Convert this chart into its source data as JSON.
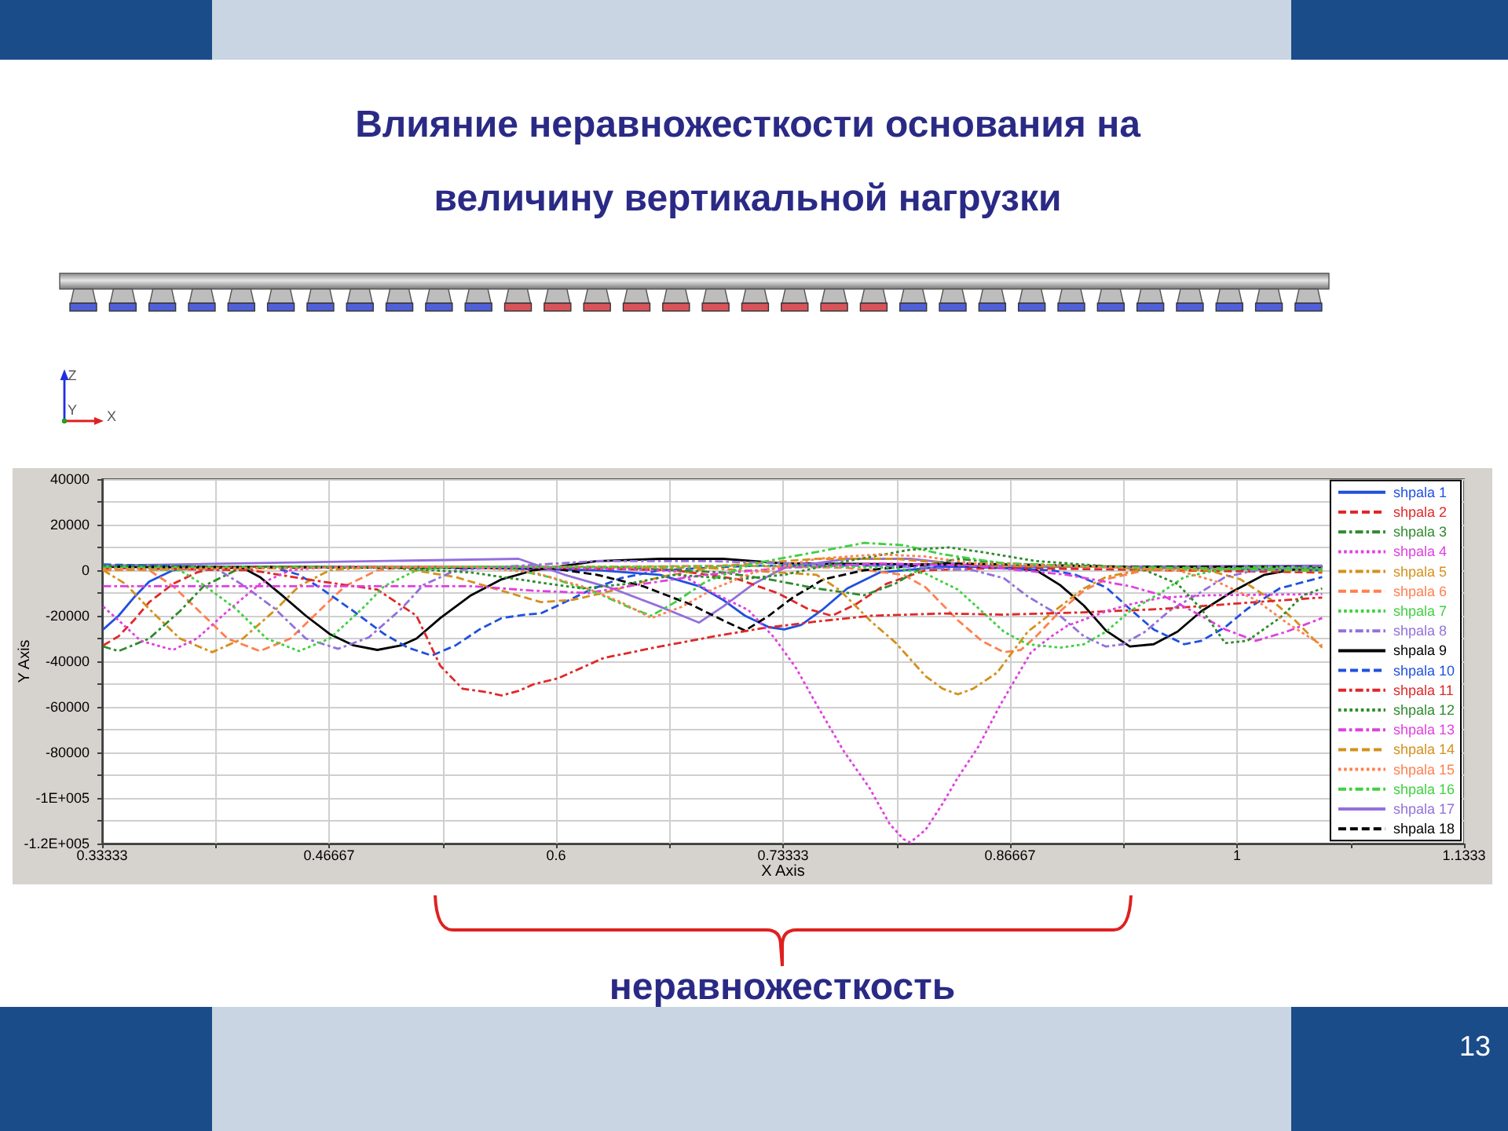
{
  "chart_data": {
    "type": "line",
    "title": "Влияние неравножесткости основания на величину вертикальной нагрузки",
    "xlabel": "X Axis",
    "ylabel": "Y Axis",
    "annotations": [
      "неравножесткость",
      "Z",
      "Y",
      "X",
      "13"
    ],
    "xlim": [
      0.33333,
      1.1333
    ],
    "xticks": [
      0.33333,
      {
        "value": 0.4,
        "label": null
      },
      0.46667,
      {
        "value": 0.53333,
        "label": null
      },
      0.6,
      {
        "value": 0.66667,
        "label": null
      },
      0.73333,
      {
        "value": 0.8,
        "label": null
      },
      0.86667,
      {
        "value": 0.93333,
        "label": null
      },
      1,
      {
        "value": 1.0667,
        "label": null
      },
      1.1333
    ],
    "ylim": [
      -120000,
      40000
    ],
    "yticks": [
      {
        "value": -120000,
        "label": "-1.2E+005"
      },
      {
        "value": -110000,
        "label": null
      },
      {
        "value": -100000,
        "label": "-1E+005"
      },
      {
        "value": -90000,
        "label": null
      },
      -80000,
      {
        "value": -70000,
        "label": null
      },
      -60000,
      {
        "value": -50000,
        "label": null
      },
      -40000,
      {
        "value": -30000,
        "label": null
      },
      -20000,
      {
        "value": -10000,
        "label": null
      },
      0,
      {
        "value": 10000,
        "label": null
      },
      20000,
      {
        "value": 30000,
        "label": null
      },
      40000
    ],
    "grid": true,
    "legend": "right",
    "series": [
      {
        "name": "shpala 1",
        "color": "#2050e0",
        "line_style": "solid",
        "x": [
          0.334,
          0.343,
          0.352,
          0.361,
          0.375,
          0.393,
          0.458,
          0.55,
          0.624,
          0.661,
          0.684,
          0.698,
          0.711,
          0.725,
          0.734,
          0.744,
          0.757,
          0.771,
          0.79,
          0.827,
          0.919,
          1.05
        ],
        "values": [
          -26000,
          -20000,
          -12000,
          -5000,
          0,
          1500,
          1500,
          1000,
          0,
          -2000,
          -7000,
          -13000,
          -20000,
          -25000,
          -26000,
          -24000,
          -17000,
          -8000,
          -1000,
          1500,
          1500,
          0
        ]
      },
      {
        "name": "shpala 2",
        "color": "#e02828",
        "line_style": "dashed",
        "x": [
          0.334,
          0.343,
          0.352,
          0.361,
          0.375,
          0.389,
          0.402,
          0.504,
          0.596,
          0.67,
          0.707,
          0.73,
          0.748,
          0.762,
          0.776,
          0.794,
          0.817,
          0.863,
          1.05
        ],
        "values": [
          -33000,
          -29000,
          -22000,
          -14000,
          -6000,
          -1000,
          1500,
          1500,
          1000,
          0,
          -4000,
          -10000,
          -17000,
          -20000,
          -15000,
          -6000,
          0,
          1000,
          -1000
        ]
      },
      {
        "name": "shpala 3",
        "color": "#2e8b2e",
        "line_style": "dashdot",
        "x": [
          0.334,
          0.343,
          0.361,
          0.379,
          0.393,
          0.412,
          0.43,
          0.55,
          0.642,
          0.698,
          0.725,
          0.753,
          0.781,
          0.799,
          0.817,
          0.836,
          0.863,
          0.919,
          1.05
        ],
        "values": [
          -33500,
          -35500,
          -30000,
          -18000,
          -7000,
          0,
          1500,
          1500,
          1000,
          -1000,
          -4000,
          -8000,
          -11000,
          -6000,
          2000,
          5000,
          3000,
          1500,
          500
        ]
      },
      {
        "name": "shpala 4",
        "color": "#e040e0",
        "line_style": "dotted",
        "x": [
          0.334,
          0.343,
          0.356,
          0.375,
          0.389,
          0.407,
          0.426,
          0.444,
          0.467,
          0.55,
          0.642,
          0.67,
          0.691,
          0.713,
          0.728,
          0.741,
          0.753,
          0.769,
          0.784,
          0.796,
          0.804,
          0.808,
          0.817,
          0.827,
          0.836,
          0.848,
          0.861,
          0.87,
          0.879,
          0.891,
          0.9,
          0.916,
          0.925,
          0.94,
          0.956,
          0.983,
          1.05
        ],
        "values": [
          -16000,
          -22000,
          -31000,
          -35000,
          -30000,
          -18000,
          -6000,
          0,
          1500,
          1500,
          500,
          -500,
          -9500,
          -17500,
          -29500,
          -43000,
          -59000,
          -79500,
          -95500,
          -111500,
          -118000,
          -119500,
          -114000,
          -102500,
          -91000,
          -77500,
          -59000,
          -47500,
          -36000,
          -29000,
          -24500,
          -20000,
          -17500,
          -14500,
          -12000,
          -11000,
          -10500
        ]
      },
      {
        "name": "shpala 5",
        "color": "#d4901c",
        "line_style": "dashdot",
        "x": [
          0.334,
          0.347,
          0.361,
          0.379,
          0.398,
          0.416,
          0.435,
          0.449,
          0.467,
          0.495,
          0.596,
          0.688,
          0.753,
          0.767,
          0.785,
          0.799,
          0.817,
          0.827,
          0.836,
          0.845,
          0.859,
          0.868,
          0.877,
          0.896,
          0.91,
          0.923,
          0.942,
          0.974,
          1.05
        ],
        "values": [
          0,
          -6000,
          -17000,
          -30000,
          -36000,
          -30000,
          -17500,
          -7000,
          0,
          1500,
          1500,
          1000,
          -2000,
          -9000,
          -22500,
          -31500,
          -46500,
          -52000,
          -54500,
          -52000,
          -45000,
          -36000,
          -27000,
          -16000,
          -8000,
          -3000,
          0,
          1000,
          -500
        ]
      },
      {
        "name": "shpala 6",
        "color": "#ff8050",
        "line_style": "dashed",
        "x": [
          0.334,
          0.361,
          0.375,
          0.389,
          0.407,
          0.426,
          0.444,
          0.462,
          0.476,
          0.495,
          0.513,
          0.624,
          0.707,
          0.771,
          0.804,
          0.817,
          0.836,
          0.85,
          0.863,
          0.873,
          0.882,
          0.896,
          0.91,
          0.923,
          0.946,
          0.974,
          1.05
        ],
        "values": [
          500,
          0,
          -7000,
          -17000,
          -30000,
          -35500,
          -30000,
          -17000,
          -7000,
          0,
          1500,
          1500,
          2000,
          1000,
          -2000,
          -7500,
          -22000,
          -31000,
          -36000,
          -35000,
          -29000,
          -18000,
          -9000,
          -4000,
          0,
          1000,
          1000
        ]
      },
      {
        "name": "shpala 7",
        "color": "#40d040",
        "line_style": "dotted",
        "x": [
          0.334,
          0.379,
          0.393,
          0.412,
          0.43,
          0.449,
          0.467,
          0.486,
          0.499,
          0.518,
          0.541,
          0.642,
          0.734,
          0.799,
          0.817,
          0.836,
          0.85,
          0.863,
          0.877,
          0.896,
          0.91,
          0.923,
          0.937,
          0.956,
          0.969,
          0.988,
          1.011,
          1.05
        ],
        "values": [
          1000,
          0,
          -6500,
          -17000,
          -30000,
          -35500,
          -30000,
          -17000,
          -7000,
          0,
          1500,
          1500,
          2000,
          1000,
          -1500,
          -8500,
          -18000,
          -27000,
          -32500,
          -34000,
          -32500,
          -27000,
          -18000,
          -9500,
          -3000,
          0,
          1500,
          1000
        ]
      },
      {
        "name": "shpala 8",
        "color": "#9370db",
        "line_style": "dashdot",
        "x": [
          0.334,
          0.402,
          0.416,
          0.435,
          0.453,
          0.472,
          0.49,
          0.509,
          0.522,
          0.541,
          0.568,
          0.624,
          0.688,
          0.79,
          0.845,
          0.863,
          0.877,
          0.896,
          0.91,
          0.923,
          0.933,
          0.946,
          0.96,
          0.979,
          0.993,
          1.011,
          1.05
        ],
        "values": [
          2000,
          0,
          -6500,
          -17000,
          -30000,
          -34500,
          -29500,
          -17000,
          -6500,
          0,
          1500,
          4000,
          4000,
          2000,
          0,
          -3500,
          -11500,
          -20000,
          -29000,
          -33500,
          -32500,
          -27000,
          -18000,
          -9500,
          -3000,
          0,
          2000
        ]
      },
      {
        "name": "shpala 9",
        "color": "#000000",
        "line_style": "solid",
        "x": [
          0.334,
          0.416,
          0.426,
          0.439,
          0.453,
          0.467,
          0.481,
          0.495,
          0.509,
          0.518,
          0.532,
          0.55,
          0.568,
          0.587,
          0.624,
          0.661,
          0.698,
          0.734,
          0.827,
          0.863,
          0.882,
          0.896,
          0.91,
          0.923,
          0.937,
          0.951,
          0.965,
          0.979,
          0.997,
          1.016,
          1.034,
          1.05
        ],
        "values": [
          1500,
          1000,
          -3000,
          -11000,
          -20000,
          -28000,
          -33000,
          -35000,
          -33000,
          -30000,
          -21000,
          -11000,
          -4000,
          0,
          4000,
          5000,
          5000,
          3000,
          2500,
          1000,
          0,
          -6500,
          -15500,
          -26500,
          -33500,
          -32500,
          -27000,
          -18000,
          -9500,
          -2000,
          500,
          1500
        ]
      },
      {
        "name": "shpala 10",
        "color": "#2050e0",
        "line_style": "dashed",
        "x": [
          0.334,
          0.435,
          0.449,
          0.462,
          0.481,
          0.499,
          0.513,
          0.527,
          0.541,
          0.555,
          0.568,
          0.582,
          0.591,
          0.601,
          0.619,
          0.638,
          0.661,
          0.716,
          0.827,
          0.891,
          0.905,
          0.923,
          0.937,
          0.951,
          0.969,
          0.979,
          0.993,
          1.006,
          1.025,
          1.05
        ],
        "values": [
          2500,
          1000,
          -2000,
          -8000,
          -18000,
          -28000,
          -34000,
          -37500,
          -33000,
          -26000,
          -21000,
          -19500,
          -19000,
          -15500,
          -9000,
          -3500,
          0,
          2000,
          2000,
          0,
          -2000,
          -7500,
          -17000,
          -26000,
          -32500,
          -31000,
          -25000,
          -17000,
          -8000,
          -3000
        ]
      },
      {
        "name": "shpala 11",
        "color": "#e02828",
        "line_style": "dashdot",
        "x": [
          0.334,
          0.421,
          0.458,
          0.495,
          0.518,
          0.532,
          0.545,
          0.559,
          0.568,
          0.578,
          0.587,
          0.601,
          0.628,
          0.661,
          0.693,
          0.721,
          0.753,
          0.785,
          0.827,
          0.863,
          0.91,
          0.956,
          1.002,
          1.05
        ],
        "values": [
          1000,
          0,
          -4500,
          -8500,
          -20000,
          -42000,
          -52000,
          -53500,
          -55000,
          -53000,
          -50000,
          -47500,
          -38500,
          -33500,
          -29000,
          -25500,
          -22500,
          -20000,
          -19000,
          -19500,
          -18500,
          -17000,
          -14500,
          -12000
        ]
      },
      {
        "name": "shpala 12",
        "color": "#2e8b2e",
        "line_style": "dotted",
        "x": [
          0.334,
          0.504,
          0.55,
          0.587,
          0.615,
          0.642,
          0.67,
          0.707,
          0.734,
          0.771,
          0.808,
          0.831,
          0.85,
          0.882,
          0.919,
          0.946,
          0.965,
          0.979,
          0.993,
          1.006,
          1.025,
          1.039,
          1.05
        ],
        "values": [
          2000,
          1000,
          -1000,
          -5000,
          -8000,
          -6000,
          -2000,
          -4000,
          -2000,
          4000,
          9000,
          10000,
          8000,
          4000,
          2000,
          0,
          -6000,
          -17000,
          -32000,
          -31000,
          -21000,
          -11000,
          -8000
        ]
      },
      {
        "name": "shpala 13",
        "color": "#e040e0",
        "line_style": "dashdot",
        "x": [
          0.334,
          0.412,
          0.504,
          0.55,
          0.587,
          0.619,
          0.651,
          0.688,
          0.734,
          0.79,
          0.845,
          0.9,
          0.937,
          0.956,
          0.974,
          0.993,
          1.011,
          1.029,
          1.05
        ],
        "values": [
          -7000,
          -7000,
          -7000,
          -7000,
          -9000,
          -10000,
          -6000,
          -2000,
          1000,
          3000,
          2000,
          -2000,
          -7000,
          -11000,
          -18000,
          -26000,
          -31000,
          -27000,
          -21000
        ]
      },
      {
        "name": "shpala 14",
        "color": "#d4901c",
        "line_style": "dashed",
        "x": [
          0.334,
          0.504,
          0.541,
          0.568,
          0.591,
          0.61,
          0.633,
          0.661,
          0.698,
          0.753,
          0.799,
          0.845,
          0.919,
          0.983,
          1.002,
          1.02,
          1.034,
          1.05
        ],
        "values": [
          0,
          1500,
          -3000,
          -9000,
          -14000,
          -13000,
          -9000,
          -3000,
          2000,
          5000,
          5000,
          2000,
          1500,
          0,
          -4000,
          -13000,
          -22000,
          -34000
        ]
      },
      {
        "name": "shpala 15",
        "color": "#ff8050",
        "line_style": "dotted",
        "x": [
          0.334,
          0.55,
          0.587,
          0.615,
          0.638,
          0.656,
          0.674,
          0.693,
          0.716,
          0.753,
          0.79,
          0.817,
          0.845,
          0.919,
          0.965,
          0.988,
          1.011,
          1.029,
          1.05
        ],
        "values": [
          500,
          1500,
          -1000,
          -7000,
          -14000,
          -21000,
          -16000,
          -8000,
          -1000,
          5000,
          7000,
          6000,
          3000,
          1500,
          0,
          -5000,
          -13000,
          -23000,
          -33000
        ]
      },
      {
        "name": "shpala 16",
        "color": "#40d040",
        "line_style": "dashdot",
        "x": [
          0.334,
          0.568,
          0.596,
          0.624,
          0.642,
          0.656,
          0.67,
          0.688,
          0.716,
          0.753,
          0.781,
          0.804,
          0.827,
          0.863,
          0.919,
          1.05
        ],
        "values": [
          1500,
          1500,
          -3000,
          -10000,
          -16000,
          -20000,
          -14000,
          -5000,
          3000,
          8000,
          12000,
          11000,
          7000,
          3000,
          1500,
          0
        ]
      },
      {
        "name": "shpala 17",
        "color": "#9370db",
        "line_style": "solid",
        "x": [
          0.334,
          0.578,
          0.605,
          0.633,
          0.661,
          0.684,
          0.698,
          0.716,
          0.734,
          0.771,
          0.808,
          0.845,
          0.919,
          1.05
        ],
        "values": [
          2000,
          5000,
          -2000,
          -8000,
          -16000,
          -23000,
          -16000,
          -6000,
          1000,
          5000,
          5000,
          2000,
          1500,
          2000
        ]
      },
      {
        "name": "shpala 18",
        "color": "#000000",
        "line_style": "dashed",
        "x": [
          0.334,
          0.596,
          0.624,
          0.651,
          0.679,
          0.698,
          0.711,
          0.725,
          0.739,
          0.757,
          0.781,
          0.827,
          0.873,
          0.937,
          1.05
        ],
        "values": [
          1500,
          1000,
          -2000,
          -7000,
          -15000,
          -22000,
          -26500,
          -20000,
          -12000,
          -4000,
          0,
          3000,
          2500,
          1500,
          1500
        ]
      }
    ]
  }
}
